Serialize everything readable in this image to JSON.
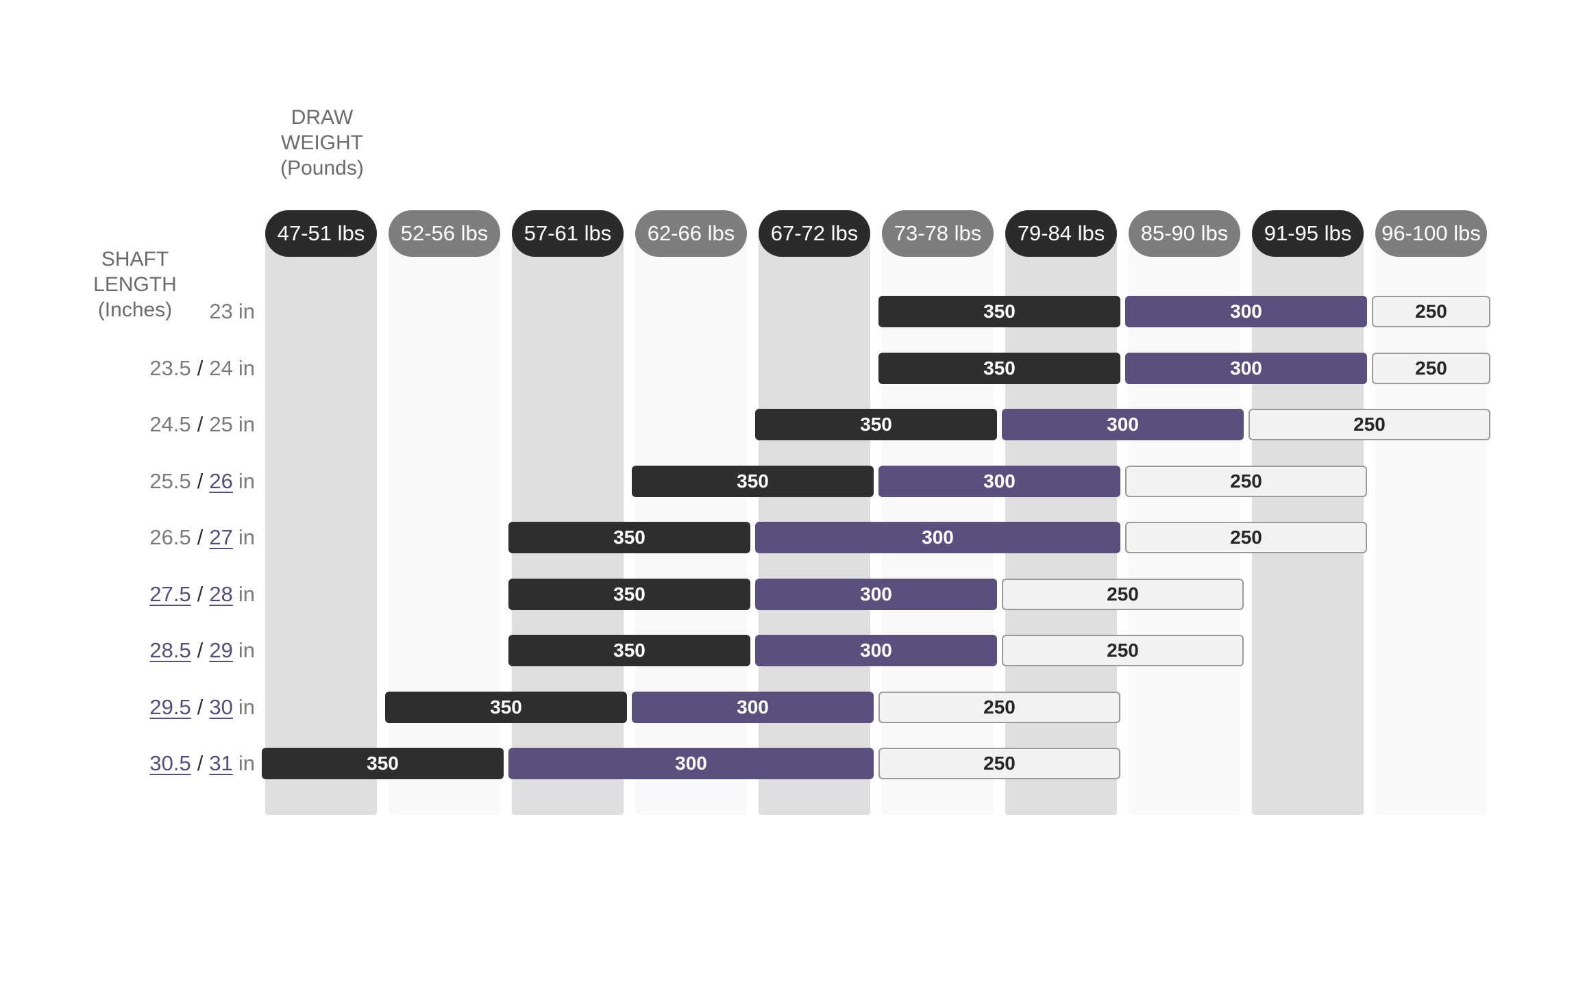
{
  "chart_data": {
    "type": "table",
    "title": "",
    "column_axis_label": "DRAW\nWEIGHT\n(Pounds)",
    "row_axis_label": "SHAFT\nLENGTH\n(Inches)",
    "columns": [
      "47-51 lbs",
      "52-56 lbs",
      "57-61 lbs",
      "62-66 lbs",
      "67-72 lbs",
      "73-78 lbs",
      "79-84 lbs",
      "85-90 lbs",
      "91-95 lbs",
      "96-100 lbs"
    ],
    "row_unit": "in",
    "rows": [
      {
        "lengths": [
          {
            "value": "23",
            "highlight": false
          }
        ],
        "spines": [
          {
            "spine": "350",
            "from": "73-78 lbs",
            "to": "79-84 lbs"
          },
          {
            "spine": "300",
            "from": "85-90 lbs",
            "to": "91-95 lbs"
          },
          {
            "spine": "250",
            "from": "96-100 lbs",
            "to": "96-100 lbs"
          }
        ]
      },
      {
        "lengths": [
          {
            "value": "23.5",
            "highlight": false
          },
          {
            "value": "24",
            "highlight": false
          }
        ],
        "spines": [
          {
            "spine": "350",
            "from": "73-78 lbs",
            "to": "79-84 lbs"
          },
          {
            "spine": "300",
            "from": "85-90 lbs",
            "to": "91-95 lbs"
          },
          {
            "spine": "250",
            "from": "96-100 lbs",
            "to": "96-100 lbs"
          }
        ]
      },
      {
        "lengths": [
          {
            "value": "24.5",
            "highlight": false
          },
          {
            "value": "25",
            "highlight": false
          }
        ],
        "spines": [
          {
            "spine": "350",
            "from": "67-72 lbs",
            "to": "73-78 lbs"
          },
          {
            "spine": "300",
            "from": "79-84 lbs",
            "to": "85-90 lbs"
          },
          {
            "spine": "250",
            "from": "91-95 lbs",
            "to": "96-100 lbs"
          }
        ]
      },
      {
        "lengths": [
          {
            "value": "25.5",
            "highlight": false
          },
          {
            "value": "26",
            "highlight": true
          }
        ],
        "spines": [
          {
            "spine": "350",
            "from": "62-66 lbs",
            "to": "67-72 lbs"
          },
          {
            "spine": "300",
            "from": "73-78 lbs",
            "to": "79-84 lbs"
          },
          {
            "spine": "250",
            "from": "85-90 lbs",
            "to": "91-95 lbs"
          }
        ]
      },
      {
        "lengths": [
          {
            "value": "26.5",
            "highlight": false
          },
          {
            "value": "27",
            "highlight": true
          }
        ],
        "spines": [
          {
            "spine": "350",
            "from": "57-61 lbs",
            "to": "62-66 lbs"
          },
          {
            "spine": "300",
            "from": "67-72 lbs",
            "to": "79-84 lbs"
          },
          {
            "spine": "250",
            "from": "85-90 lbs",
            "to": "91-95 lbs"
          }
        ]
      },
      {
        "lengths": [
          {
            "value": "27.5",
            "highlight": true
          },
          {
            "value": "28",
            "highlight": true
          }
        ],
        "spines": [
          {
            "spine": "350",
            "from": "57-61 lbs",
            "to": "62-66 lbs"
          },
          {
            "spine": "300",
            "from": "67-72 lbs",
            "to": "73-78 lbs"
          },
          {
            "spine": "250",
            "from": "79-84 lbs",
            "to": "85-90 lbs"
          }
        ]
      },
      {
        "lengths": [
          {
            "value": "28.5",
            "highlight": true
          },
          {
            "value": "29",
            "highlight": true
          }
        ],
        "spines": [
          {
            "spine": "350",
            "from": "57-61 lbs",
            "to": "62-66 lbs"
          },
          {
            "spine": "300",
            "from": "67-72 lbs",
            "to": "73-78 lbs"
          },
          {
            "spine": "250",
            "from": "79-84 lbs",
            "to": "85-90 lbs"
          }
        ]
      },
      {
        "lengths": [
          {
            "value": "29.5",
            "highlight": true
          },
          {
            "value": "30",
            "highlight": true
          }
        ],
        "spines": [
          {
            "spine": "350",
            "from": "52-56 lbs",
            "to": "57-61 lbs"
          },
          {
            "spine": "300",
            "from": "62-66 lbs",
            "to": "67-72 lbs"
          },
          {
            "spine": "250",
            "from": "73-78 lbs",
            "to": "79-84 lbs"
          }
        ]
      },
      {
        "lengths": [
          {
            "value": "30.5",
            "highlight": true
          },
          {
            "value": "31",
            "highlight": true
          }
        ],
        "spines": [
          {
            "spine": "350",
            "from": "47-51 lbs",
            "to": "52-56 lbs"
          },
          {
            "spine": "300",
            "from": "57-61 lbs",
            "to": "67-72 lbs"
          },
          {
            "spine": "250",
            "from": "73-78 lbs",
            "to": "79-84 lbs"
          }
        ]
      }
    ],
    "colors": {
      "spine_350": "#2e2e2e",
      "spine_300": "#5b507d",
      "spine_250": "#f2f2f2",
      "header_dark": "#2b2b2b",
      "header_light": "#7d7d7d",
      "column_dark": "#dedede",
      "column_light": "#f8f8f8",
      "highlight_text": "#574b7c"
    }
  }
}
